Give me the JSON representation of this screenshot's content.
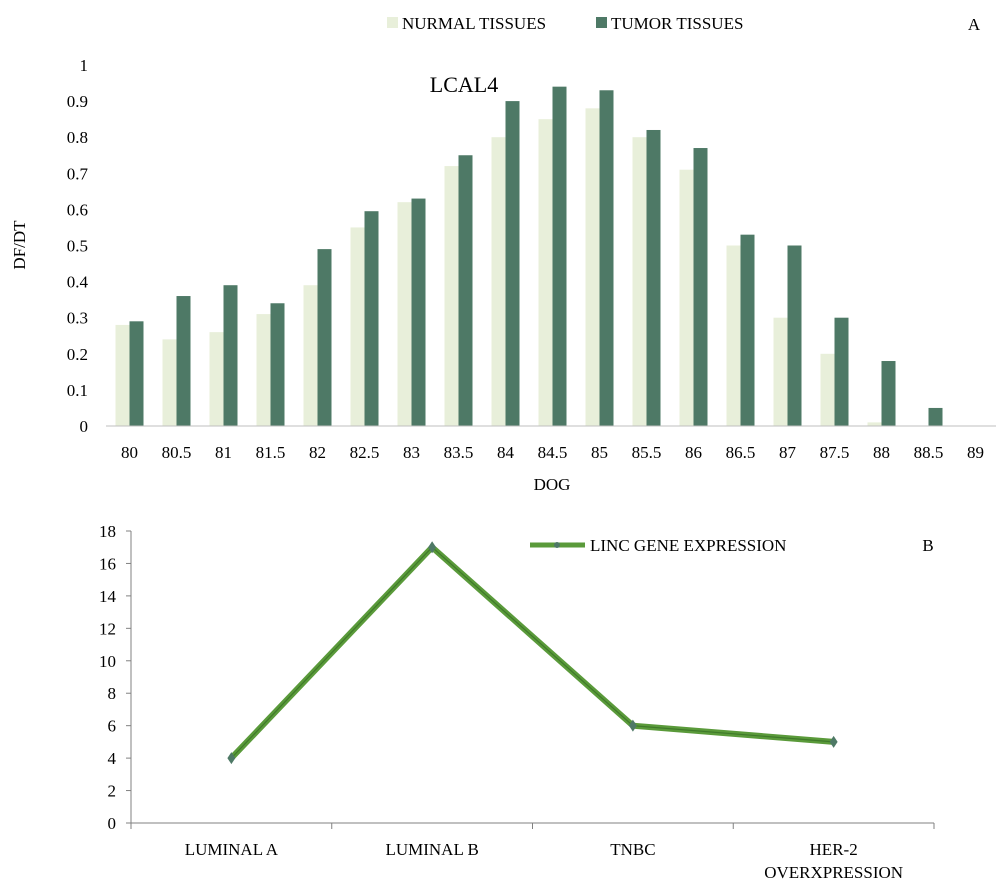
{
  "chart_data": [
    {
      "panel_label": "A",
      "type": "bar",
      "title": "LCAL4",
      "xlabel": "DOG",
      "ylabel": "DF/DT",
      "ylim": [
        0,
        1
      ],
      "yticks": [
        "0",
        "0.1",
        "0.2",
        "0.3",
        "0.4",
        "0.5",
        "0.6",
        "0.7",
        "0.8",
        "0.9",
        "1"
      ],
      "categories": [
        "80",
        "80.5",
        "81",
        "81.5",
        "82",
        "82.5",
        "83",
        "83.5",
        "84",
        "84.5",
        "85",
        "85.5",
        "86",
        "86.5",
        "87",
        "87.5",
        "88",
        "88.5",
        "89"
      ],
      "series": [
        {
          "name": "NURMAL TISSUES",
          "color": "#e8efda",
          "values": [
            0.28,
            0.24,
            0.26,
            0.31,
            0.39,
            0.55,
            0.62,
            0.72,
            0.8,
            0.85,
            0.88,
            0.8,
            0.71,
            0.5,
            0.3,
            0.2,
            0.01,
            0,
            0
          ]
        },
        {
          "name": "TUMOR TISSUES",
          "color": "#4e7966",
          "values": [
            0.29,
            0.36,
            0.39,
            0.34,
            0.49,
            0.595,
            0.63,
            0.75,
            0.9,
            0.94,
            0.93,
            0.82,
            0.77,
            0.53,
            0.5,
            0.3,
            0.18,
            0.05,
            0
          ]
        }
      ],
      "legend_position": "top-center",
      "grid": false
    },
    {
      "panel_label": "B",
      "type": "line",
      "ylim": [
        0,
        18
      ],
      "yticks": [
        "0",
        "2",
        "4",
        "6",
        "8",
        "10",
        "12",
        "14",
        "16",
        "18"
      ],
      "categories": [
        "LUMINAL A",
        "LUMINAL B",
        "TNBC",
        "HER-2 OVERXPRESSION"
      ],
      "category_lines": [
        [
          "LUMINAL A"
        ],
        [
          "LUMINAL B"
        ],
        [
          "TNBC"
        ],
        [
          "HER-2",
          "OVERXPRESSION"
        ]
      ],
      "series": [
        {
          "name": "LINC GENE EXPRESSION",
          "color": "#5a9a3a",
          "values": [
            4,
            17,
            6,
            5
          ]
        }
      ],
      "legend_position": "top-right",
      "grid": false
    }
  ]
}
